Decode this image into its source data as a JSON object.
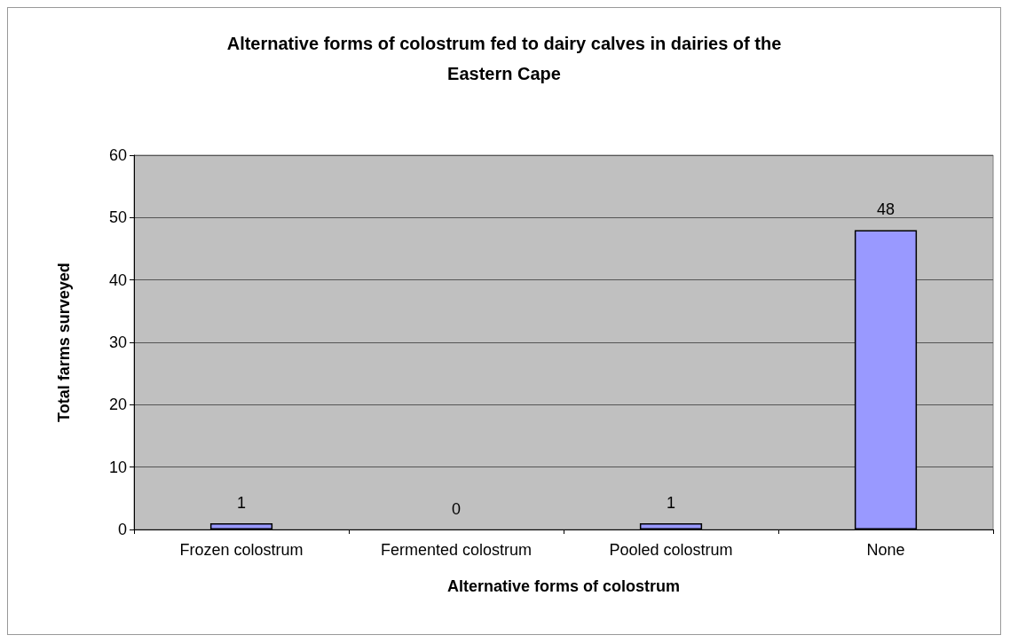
{
  "chart_data": {
    "type": "bar",
    "title": "Alternative forms of colostrum fed to dairy calves in dairies of the\nEastern Cape",
    "xlabel": "Alternative forms of colostrum",
    "ylabel": "Total farms surveyed",
    "categories": [
      "Frozen colostrum",
      "Fermented colostrum",
      "Pooled colostrum",
      "None"
    ],
    "values": [
      1,
      0,
      1,
      48
    ],
    "color": "#9999ff",
    "ylim": [
      0,
      60
    ],
    "yticks": [
      0,
      10,
      20,
      30,
      40,
      50,
      60
    ],
    "grid": "y",
    "data_labels": true
  }
}
